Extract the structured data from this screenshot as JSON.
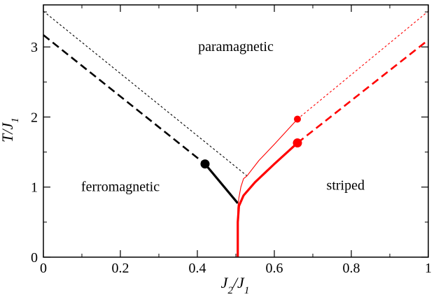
{
  "chart_data": {
    "type": "line",
    "title": "",
    "xlabel": "J_2/J_1",
    "ylabel": "T/J_1",
    "xlim": [
      0,
      1
    ],
    "ylim": [
      0,
      3.6
    ],
    "x_ticks": [
      0,
      0.2,
      0.4,
      0.6,
      0.8,
      1
    ],
    "x_tick_labels": [
      "0",
      "0.2",
      "0.4",
      "0.6",
      "0.8",
      "1"
    ],
    "y_ticks": [
      0,
      1,
      2,
      3
    ],
    "y_tick_labels": [
      "0",
      "1",
      "2",
      "3"
    ],
    "grid": false,
    "legend": "none",
    "regions": [
      {
        "label": "paramagnetic",
        "x": 0.5,
        "y": 3.0
      },
      {
        "label": "ferromagnetic",
        "x": 0.2,
        "y": 1.0
      },
      {
        "label": "striped",
        "x": 0.785,
        "y": 1.02
      }
    ],
    "series": [
      {
        "color": "#000000",
        "style": "thin-dotted",
        "points": [
          [
            0,
            3.51
          ],
          [
            0.529,
            1.16
          ]
        ]
      },
      {
        "color": "#000000",
        "style": "thick-dashed",
        "points": [
          [
            0,
            3.17
          ],
          [
            0.42,
            1.33
          ]
        ]
      },
      {
        "color": "#000000",
        "style": "thick-solid",
        "points": [
          [
            0.42,
            1.33
          ],
          [
            0.505,
            0.77
          ]
        ]
      },
      {
        "color": "#ff0000",
        "style": "thin-solid",
        "points": [
          [
            0.529,
            1.16
          ],
          [
            0.52,
            1.12
          ],
          [
            0.513,
            1.0
          ],
          [
            0.508,
            0.85
          ],
          [
            0.505,
            0.7
          ],
          [
            0.505,
            0.0
          ]
        ]
      },
      {
        "color": "#ff0000",
        "style": "thin-solid",
        "points": [
          [
            0.529,
            1.16
          ],
          [
            0.56,
            1.38
          ],
          [
            0.6,
            1.61
          ],
          [
            0.63,
            1.79
          ],
          [
            0.66,
            1.97
          ]
        ]
      },
      {
        "color": "#ff0000",
        "style": "thin-dotted",
        "points": [
          [
            0.66,
            1.97
          ],
          [
            1.0,
            3.51
          ]
        ]
      },
      {
        "color": "#ff0000",
        "style": "thick-solid",
        "points": [
          [
            0.505,
            0.0
          ],
          [
            0.505,
            0.5
          ],
          [
            0.508,
            0.73
          ],
          [
            0.52,
            0.88
          ],
          [
            0.55,
            1.07
          ],
          [
            0.6,
            1.33
          ],
          [
            0.66,
            1.63
          ]
        ]
      },
      {
        "color": "#ff0000",
        "style": "thick-dashed",
        "points": [
          [
            0.66,
            1.63
          ],
          [
            1.0,
            3.1
          ]
        ]
      },
      {
        "color": "#000000",
        "style": "thick-solid",
        "points": [
          [
            0.505,
            0.77
          ],
          [
            0.508,
            0.8
          ],
          [
            0.52,
            0.9
          ],
          [
            0.55,
            1.07
          ],
          [
            0.6,
            1.33
          ],
          [
            0.66,
            1.63
          ]
        ],
        "note": "black-joins-red"
      }
    ],
    "markers": [
      {
        "x": 0.42,
        "y": 1.33,
        "color": "#000000",
        "size": "large"
      },
      {
        "x": 0.66,
        "y": 1.63,
        "color": "#ff0000",
        "size": "large"
      },
      {
        "x": 0.66,
        "y": 1.97,
        "color": "#ff0000",
        "size": "small"
      }
    ]
  }
}
